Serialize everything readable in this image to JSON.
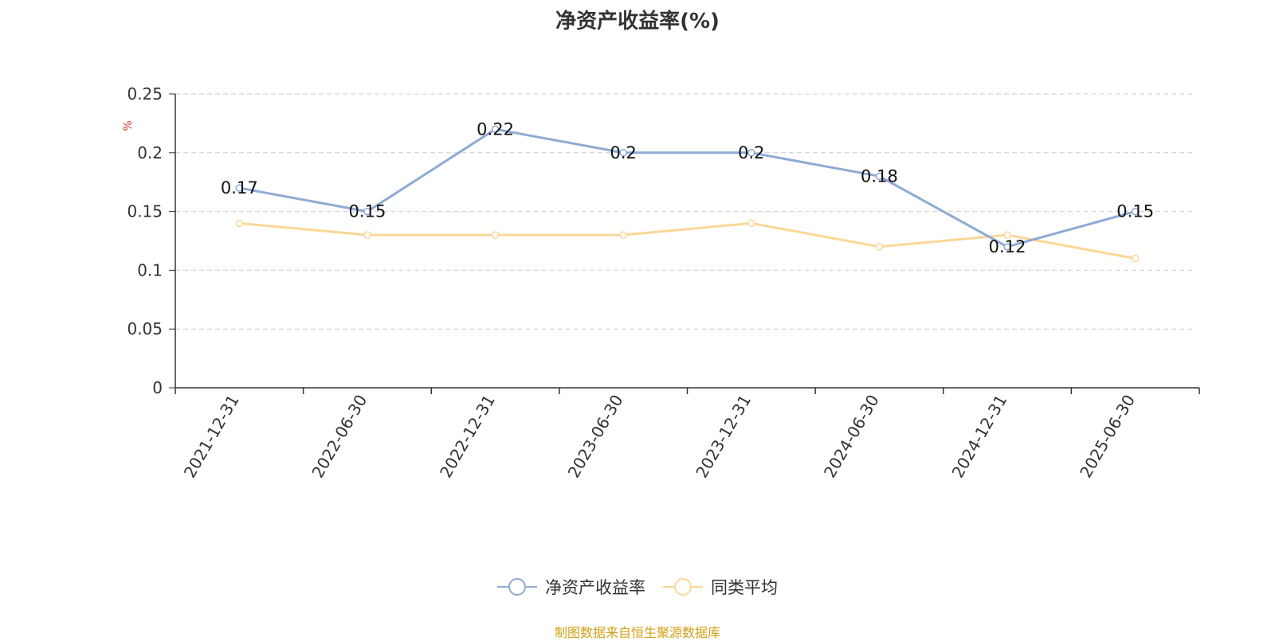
{
  "chart_data": {
    "type": "line",
    "title": "净资产收益率(%)",
    "ylabel": "%",
    "xlabel": "",
    "categories": [
      "2021-12-31",
      "2022-06-30",
      "2022-12-31",
      "2023-06-30",
      "2023-12-31",
      "2024-06-30",
      "2024-12-31",
      "2025-06-30"
    ],
    "ylim": [
      0,
      0.25
    ],
    "yticks": [
      "0",
      "0.05",
      "0.1",
      "0.15",
      "0.2",
      "0.25"
    ],
    "grid": true,
    "legend_position": "bottom",
    "series": [
      {
        "name": "净资产收益率",
        "values": [
          0.17,
          0.15,
          0.22,
          0.2,
          0.2,
          0.18,
          0.12,
          0.15
        ],
        "labels": [
          "0.17",
          "0.15",
          "0.22",
          "0.2",
          "0.2",
          "0.18",
          "0.12",
          "0.15"
        ],
        "color": "#8eaad6"
      },
      {
        "name": "同类平均",
        "values": [
          0.14,
          0.13,
          0.13,
          0.13,
          0.14,
          0.12,
          0.13,
          0.11
        ],
        "color": "#fbd796"
      }
    ]
  },
  "footer": {
    "source": "制图数据来自恒生聚源数据库"
  },
  "colors": {
    "axis_unit": "#e0302a",
    "axis": "#333333",
    "grid": "#cccccc",
    "footer": "#d4a017"
  }
}
